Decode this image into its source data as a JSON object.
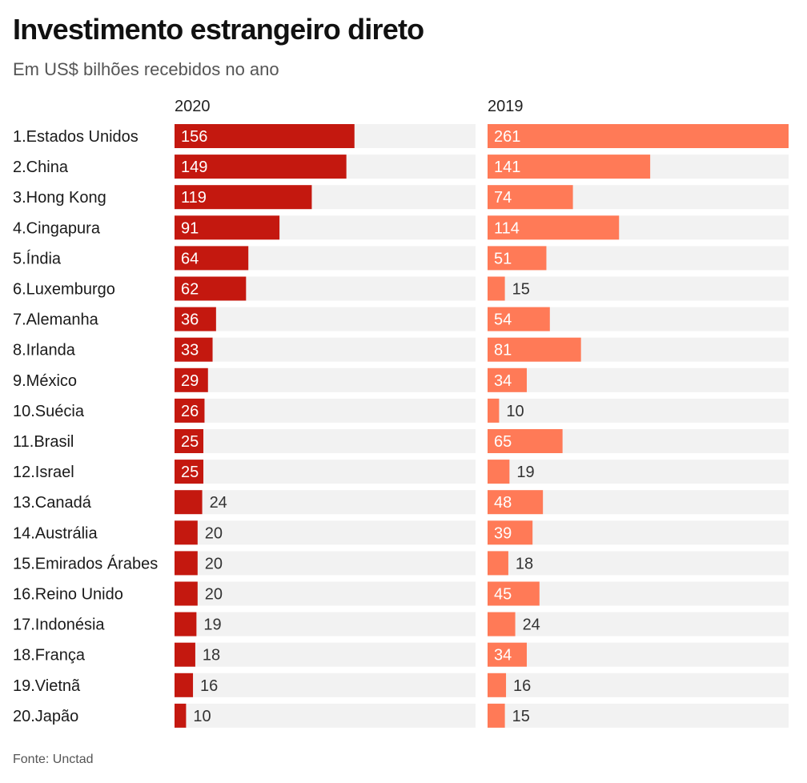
{
  "header": {
    "title": "Investimento estrangeiro direto",
    "subtitle": "Em US$ bilhões recebidos no ano"
  },
  "footer": {
    "source": "Fonte: Unctad"
  },
  "colors": {
    "y2020": "#c4180f",
    "y2019": "#ff7a57",
    "track": "#f2f2f2",
    "label_inside": "#ffffff",
    "label_outside": "#333333"
  },
  "chart_data": {
    "type": "bar",
    "orientation": "horizontal",
    "title": "Investimento estrangeiro direto",
    "subtitle": "Em US$ bilhões recebidos no ano",
    "categories": [
      "1.Estados Unidos",
      "2.China",
      "3.Hong Kong",
      "4.Cingapura",
      "5.Índia",
      "6.Luxemburgo",
      "7.Alemanha",
      "8.Irlanda",
      "9.México",
      "10.Suécia",
      "11.Brasil",
      "12.Israel",
      "13.Canadá",
      "14.Austrália",
      "15.Emirados Árabes",
      "16.Reino Unido",
      "17.Indonésia",
      "18.França",
      "19.Vietnã",
      "20.Japão"
    ],
    "series": [
      {
        "name": "2020",
        "values": [
          156,
          149,
          119,
          91,
          64,
          62,
          36,
          33,
          29,
          26,
          25,
          25,
          24,
          20,
          20,
          20,
          19,
          18,
          16,
          10
        ]
      },
      {
        "name": "2019",
        "values": [
          261,
          141,
          74,
          114,
          51,
          15,
          54,
          81,
          34,
          10,
          65,
          19,
          48,
          39,
          18,
          45,
          24,
          34,
          16,
          15
        ]
      }
    ],
    "xlim": [
      0,
      261
    ],
    "grid": false,
    "legend": "column headers"
  }
}
